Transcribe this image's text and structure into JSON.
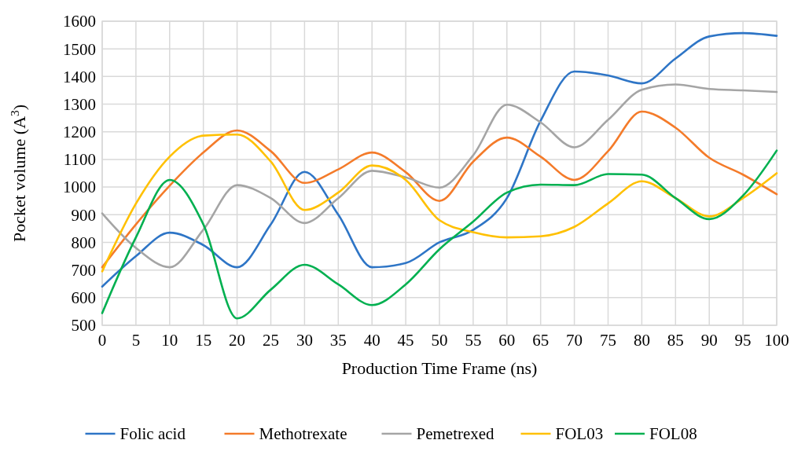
{
  "chart_data": {
    "type": "line",
    "xlabel": "Production Time Frame (ns)",
    "ylabel": "Pocket volume (A$^{3}$)",
    "x": [
      0,
      5,
      10,
      15,
      20,
      25,
      30,
      35,
      40,
      45,
      50,
      55,
      60,
      65,
      70,
      75,
      80,
      85,
      90,
      95,
      100
    ],
    "xlim": [
      0,
      100
    ],
    "xticks": [
      0,
      5,
      10,
      15,
      20,
      25,
      30,
      35,
      40,
      45,
      50,
      55,
      60,
      65,
      70,
      75,
      80,
      85,
      90,
      95,
      100
    ],
    "ylim": [
      500,
      1600
    ],
    "yticks": [
      500,
      600,
      700,
      800,
      900,
      1000,
      1100,
      1200,
      1300,
      1400,
      1500,
      1600
    ],
    "grid": true,
    "legend": "bottom",
    "line_style": "solid",
    "marker": "none",
    "series": [
      {
        "name": "Folic acid",
        "color": "#2e75c6",
        "values": [
          640,
          750,
          835,
          790,
          710,
          865,
          1055,
          900,
          710,
          725,
          800,
          845,
          960,
          1240,
          1418,
          1404,
          1375,
          1465,
          1545,
          1557,
          1547
        ]
      },
      {
        "name": "Methotrexate",
        "color": "#f47b2a",
        "values": [
          710,
          865,
          1005,
          1125,
          1205,
          1130,
          1015,
          1064,
          1125,
          1054,
          950,
          1092,
          1179,
          1110,
          1026,
          1130,
          1273,
          1215,
          1106,
          1045,
          974
        ]
      },
      {
        "name": "Pemetrexed",
        "color": "#a5a5a5",
        "values": [
          905,
          780,
          710,
          846,
          1007,
          960,
          870,
          960,
          1059,
          1035,
          998,
          1115,
          1298,
          1234,
          1144,
          1243,
          1352,
          1371,
          1355,
          1350,
          1344
        ]
      },
      {
        "name": "FOL03",
        "color": "#ffc000",
        "values": [
          695,
          940,
          1110,
          1186,
          1190,
          1092,
          917,
          980,
          1078,
          1026,
          880,
          837,
          818,
          822,
          856,
          941,
          1021,
          960,
          894,
          960,
          1050
        ]
      },
      {
        "name": "FOL08",
        "color": "#00b050",
        "values": [
          544,
          818,
          1026,
          865,
          525,
          629,
          719,
          648,
          573,
          648,
          775,
          875,
          980,
          1009,
          1007,
          1047,
          1045,
          960,
          884,
          969,
          1132
        ]
      }
    ]
  }
}
